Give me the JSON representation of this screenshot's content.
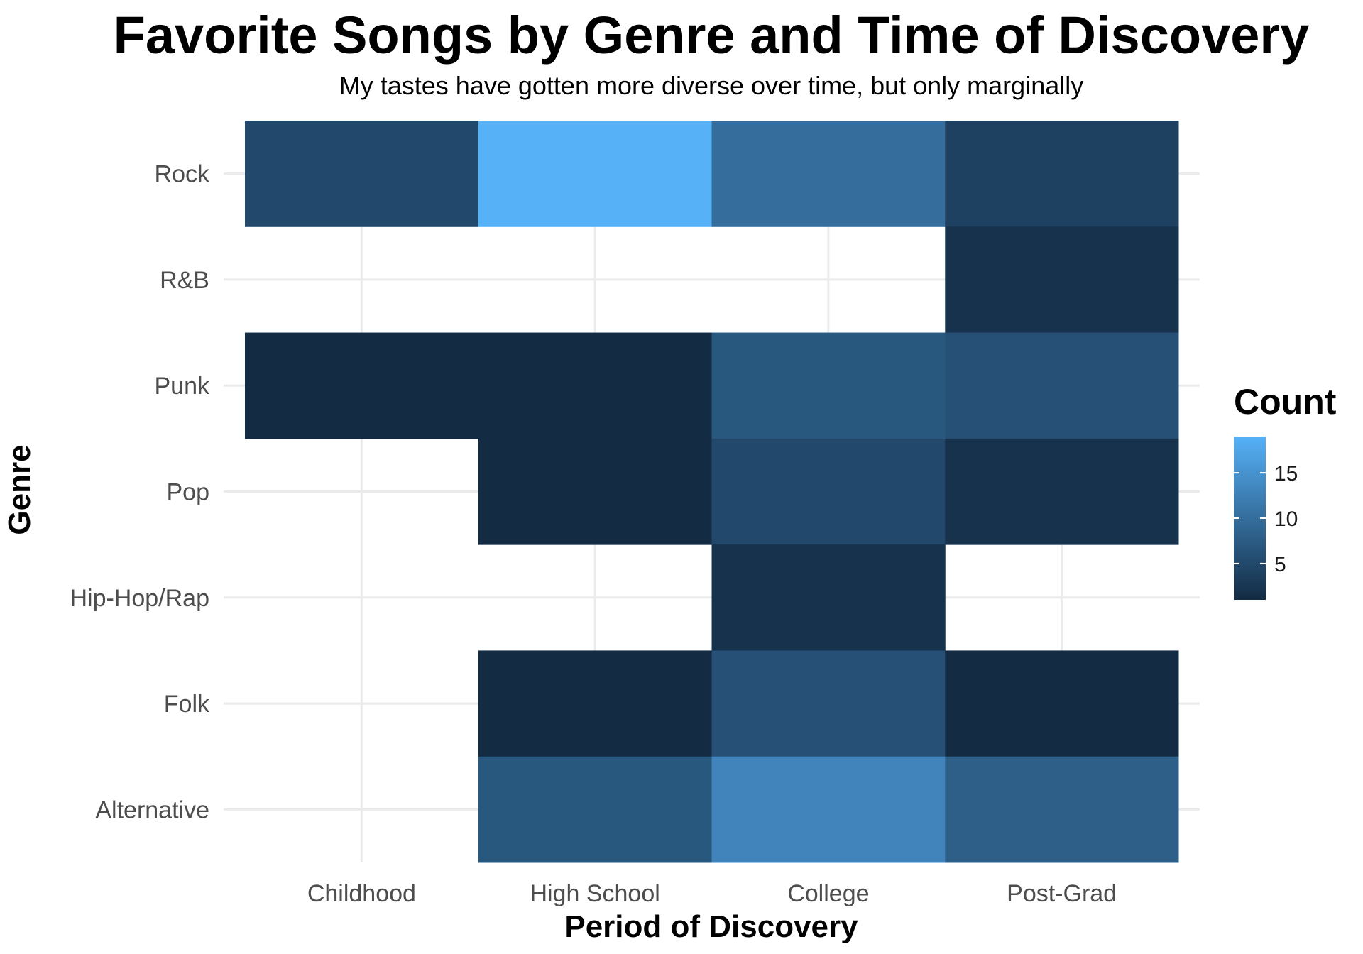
{
  "chart_data": {
    "type": "heatmap",
    "title": "Favorite Songs by Genre and Time of Discovery",
    "subtitle": "My tastes have gotten more diverse over time, but only marginally",
    "xlabel": "Period of Discovery",
    "ylabel": "Genre",
    "x_categories": [
      "Childhood",
      "High School",
      "College",
      "Post-Grad"
    ],
    "y_categories": [
      "Alternative",
      "Folk",
      "Hip-Hop/Rap",
      "Pop",
      "Punk",
      "R&B",
      "Rock"
    ],
    "cells": [
      {
        "x": "Childhood",
        "y": "Rock",
        "value": 5
      },
      {
        "x": "High School",
        "y": "Rock",
        "value": 19
      },
      {
        "x": "College",
        "y": "Rock",
        "value": 10
      },
      {
        "x": "Post-Grad",
        "y": "Rock",
        "value": 4
      },
      {
        "x": "Post-Grad",
        "y": "R&B",
        "value": 2
      },
      {
        "x": "Childhood",
        "y": "Punk",
        "value": 1
      },
      {
        "x": "High School",
        "y": "Punk",
        "value": 1
      },
      {
        "x": "College",
        "y": "Punk",
        "value": 7
      },
      {
        "x": "Post-Grad",
        "y": "Punk",
        "value": 6
      },
      {
        "x": "High School",
        "y": "Pop",
        "value": 1
      },
      {
        "x": "College",
        "y": "Pop",
        "value": 5
      },
      {
        "x": "Post-Grad",
        "y": "Pop",
        "value": 2
      },
      {
        "x": "College",
        "y": "Hip-Hop/Rap",
        "value": 2
      },
      {
        "x": "High School",
        "y": "Folk",
        "value": 1
      },
      {
        "x": "College",
        "y": "Folk",
        "value": 6
      },
      {
        "x": "Post-Grad",
        "y": "Folk",
        "value": 1
      },
      {
        "x": "High School",
        "y": "Alternative",
        "value": 7
      },
      {
        "x": "College",
        "y": "Alternative",
        "value": 13
      },
      {
        "x": "Post-Grad",
        "y": "Alternative",
        "value": 8
      }
    ],
    "legend": {
      "title": "Count",
      "placement": "right",
      "ticks": [
        5,
        10,
        15
      ],
      "tick_labels": [
        "5",
        "10",
        "15"
      ],
      "range": [
        1,
        19
      ],
      "low_color": "#132B43",
      "high_color": "#56B1F7"
    },
    "grid": true
  }
}
